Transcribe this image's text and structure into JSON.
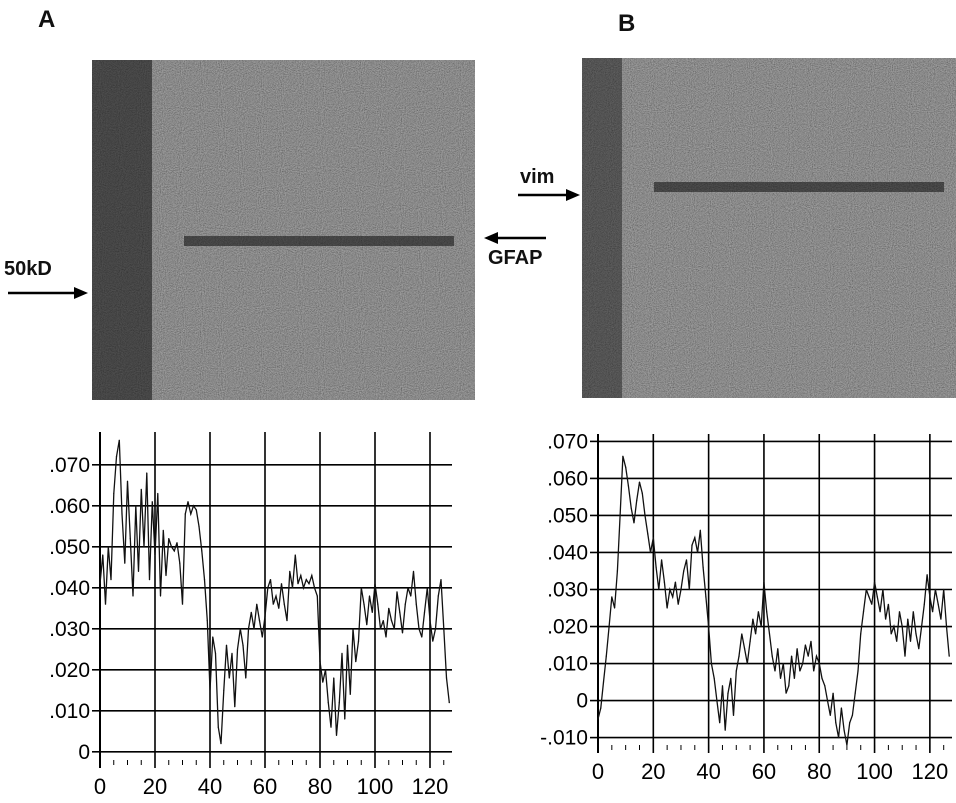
{
  "panels": {
    "a": {
      "letter": "A",
      "gel": {
        "marker_label": "50kD",
        "band_label": "GFAP"
      }
    },
    "b": {
      "letter": "B",
      "gel": {
        "band_label": "vim"
      }
    }
  },
  "chart_data": [
    {
      "type": "line",
      "panel": "A",
      "xlim": [
        0,
        128
      ],
      "ylim": [
        -0.002,
        0.078
      ],
      "x_ticks": [
        0,
        20,
        40,
        60,
        80,
        100,
        120
      ],
      "x_tick_labels": [
        "0",
        "20",
        "40",
        "60",
        "80",
        "100",
        "120"
      ],
      "y_ticks": [
        0,
        0.01,
        0.02,
        0.03,
        0.04,
        0.05,
        0.06,
        0.07
      ],
      "y_tick_labels": [
        "0",
        ".010",
        ".020",
        ".030",
        ".040",
        ".050",
        ".060",
        ".070"
      ],
      "grid": true,
      "series": [
        {
          "x": [
            0,
            1,
            2,
            3,
            4,
            5,
            6,
            7,
            8,
            9,
            10,
            11,
            12,
            13,
            14,
            15,
            16,
            17,
            18,
            19,
            20,
            21,
            22,
            23,
            24,
            25,
            26,
            27,
            28,
            29,
            30,
            31,
            32,
            33,
            34,
            35,
            36,
            37,
            38,
            39,
            40,
            41,
            42,
            43,
            44,
            45,
            46,
            47,
            48,
            49,
            50,
            51,
            52,
            53,
            54,
            55,
            56,
            57,
            58,
            59,
            60,
            61,
            62,
            63,
            64,
            65,
            66,
            67,
            68,
            69,
            70,
            71,
            72,
            73,
            74,
            75,
            76,
            77,
            78,
            79,
            80,
            81,
            82,
            83,
            84,
            85,
            86,
            87,
            88,
            89,
            90,
            91,
            92,
            93,
            94,
            95,
            96,
            97,
            98,
            99,
            100,
            101,
            102,
            103,
            104,
            105,
            106,
            107,
            108,
            109,
            110,
            111,
            112,
            113,
            114,
            115,
            116,
            117,
            118,
            119,
            120,
            121,
            122,
            123,
            124,
            125,
            126,
            127
          ],
          "values": [
            0.041,
            0.048,
            0.036,
            0.05,
            0.042,
            0.063,
            0.072,
            0.076,
            0.058,
            0.046,
            0.066,
            0.052,
            0.038,
            0.06,
            0.044,
            0.064,
            0.05,
            0.068,
            0.042,
            0.061,
            0.048,
            0.063,
            0.038,
            0.054,
            0.043,
            0.052,
            0.05,
            0.049,
            0.051,
            0.046,
            0.036,
            0.058,
            0.061,
            0.058,
            0.06,
            0.059,
            0.055,
            0.049,
            0.042,
            0.032,
            0.015,
            0.028,
            0.024,
            0.006,
            0.002,
            0.015,
            0.026,
            0.018,
            0.024,
            0.011,
            0.025,
            0.03,
            0.026,
            0.018,
            0.03,
            0.034,
            0.03,
            0.036,
            0.032,
            0.028,
            0.033,
            0.04,
            0.042,
            0.036,
            0.038,
            0.035,
            0.041,
            0.036,
            0.032,
            0.044,
            0.04,
            0.048,
            0.041,
            0.043,
            0.04,
            0.042,
            0.041,
            0.043,
            0.04,
            0.038,
            0.022,
            0.017,
            0.02,
            0.012,
            0.006,
            0.018,
            0.004,
            0.012,
            0.024,
            0.008,
            0.026,
            0.014,
            0.03,
            0.022,
            0.027,
            0.04,
            0.036,
            0.031,
            0.038,
            0.034,
            0.041,
            0.036,
            0.03,
            0.032,
            0.028,
            0.035,
            0.032,
            0.03,
            0.039,
            0.034,
            0.029,
            0.036,
            0.04,
            0.038,
            0.044,
            0.036,
            0.03,
            0.028,
            0.034,
            0.04,
            0.032,
            0.027,
            0.03,
            0.038,
            0.042,
            0.03,
            0.018,
            0.012
          ]
        }
      ]
    },
    {
      "type": "line",
      "panel": "B",
      "xlim": [
        0,
        128
      ],
      "ylim": [
        -0.012,
        0.072
      ],
      "x_ticks": [
        0,
        20,
        40,
        60,
        80,
        100,
        120
      ],
      "x_tick_labels": [
        "0",
        "20",
        "40",
        "60",
        "80",
        "100",
        "120"
      ],
      "y_ticks": [
        -0.01,
        0,
        0.01,
        0.02,
        0.03,
        0.04,
        0.05,
        0.06,
        0.07
      ],
      "y_tick_labels": [
        "-.010",
        "0",
        ".010",
        ".020",
        ".030",
        ".040",
        ".050",
        ".060",
        ".070"
      ],
      "grid": true,
      "series": [
        {
          "x": [
            0,
            1,
            2,
            3,
            4,
            5,
            6,
            7,
            8,
            9,
            10,
            11,
            12,
            13,
            14,
            15,
            16,
            17,
            18,
            19,
            20,
            21,
            22,
            23,
            24,
            25,
            26,
            27,
            28,
            29,
            30,
            31,
            32,
            33,
            34,
            35,
            36,
            37,
            38,
            39,
            40,
            41,
            42,
            43,
            44,
            45,
            46,
            47,
            48,
            49,
            50,
            51,
            52,
            53,
            54,
            55,
            56,
            57,
            58,
            59,
            60,
            61,
            62,
            63,
            64,
            65,
            66,
            67,
            68,
            69,
            70,
            71,
            72,
            73,
            74,
            75,
            76,
            77,
            78,
            79,
            80,
            81,
            82,
            83,
            84,
            85,
            86,
            87,
            88,
            89,
            90,
            91,
            92,
            93,
            94,
            95,
            96,
            97,
            98,
            99,
            100,
            101,
            102,
            103,
            104,
            105,
            106,
            107,
            108,
            109,
            110,
            111,
            112,
            113,
            114,
            115,
            116,
            117,
            118,
            119,
            120,
            121,
            122,
            123,
            124,
            125,
            126,
            127
          ],
          "values": [
            -0.005,
            -0.002,
            0.005,
            0.012,
            0.02,
            0.028,
            0.025,
            0.035,
            0.05,
            0.066,
            0.063,
            0.058,
            0.052,
            0.048,
            0.054,
            0.059,
            0.056,
            0.05,
            0.045,
            0.04,
            0.044,
            0.036,
            0.03,
            0.038,
            0.032,
            0.025,
            0.03,
            0.028,
            0.032,
            0.026,
            0.03,
            0.035,
            0.038,
            0.03,
            0.042,
            0.044,
            0.04,
            0.046,
            0.036,
            0.028,
            0.02,
            0.01,
            0.006,
            0.0,
            -0.006,
            0.004,
            -0.008,
            0.002,
            0.006,
            -0.004,
            0.008,
            0.012,
            0.018,
            0.014,
            0.01,
            0.016,
            0.022,
            0.018,
            0.024,
            0.02,
            0.032,
            0.024,
            0.018,
            0.012,
            0.008,
            0.014,
            0.006,
            0.01,
            0.002,
            0.004,
            0.012,
            0.006,
            0.014,
            0.008,
            0.01,
            0.015,
            0.012,
            0.016,
            0.008,
            0.012,
            0.01,
            0.006,
            0.004,
            0.0,
            -0.004,
            0.002,
            -0.006,
            -0.01,
            -0.002,
            -0.008,
            -0.012,
            -0.006,
            -0.004,
            0.002,
            0.008,
            0.018,
            0.024,
            0.03,
            0.028,
            0.026,
            0.032,
            0.028,
            0.024,
            0.03,
            0.022,
            0.026,
            0.018,
            0.02,
            0.016,
            0.024,
            0.02,
            0.012,
            0.022,
            0.016,
            0.024,
            0.018,
            0.014,
            0.02,
            0.026,
            0.034,
            0.028,
            0.024,
            0.03,
            0.026,
            0.022,
            0.03,
            0.02,
            0.012
          ]
        }
      ]
    }
  ]
}
